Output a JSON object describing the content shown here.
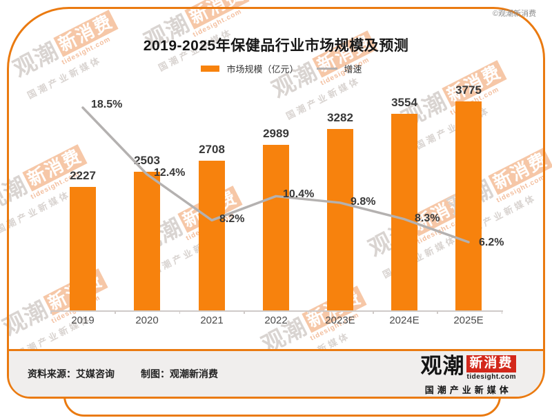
{
  "copyright": "©观潮新消费",
  "title": "2019-2025年保健品行业市场规模及预测",
  "legend": {
    "bar_label": "市场规模（亿元）",
    "line_label": "增速"
  },
  "chart_data": {
    "type": "bar+line",
    "title": "2019-2025年保健品行业市场规模及预测",
    "categories": [
      "2019",
      "2020",
      "2021",
      "2022",
      "2023E",
      "2024E",
      "2025E"
    ],
    "series": [
      {
        "name": "市场规模（亿元）",
        "type": "bar",
        "values": [
          2227,
          2503,
          2708,
          2989,
          3282,
          3554,
          3775
        ]
      },
      {
        "name": "增速",
        "type": "line",
        "unit": "%",
        "values": [
          18.5,
          12.4,
          8.2,
          10.4,
          9.8,
          8.3,
          6.2
        ]
      }
    ],
    "value_labels": [
      "2227",
      "2503",
      "2708",
      "2989",
      "3282",
      "3554",
      "3775"
    ],
    "line_labels": [
      "18.5%",
      "12.4%",
      "8.2%",
      "10.4%",
      "9.8%",
      "8.3%",
      "6.2%"
    ],
    "bar_axis_range": [
      0,
      3900
    ],
    "line_axis_range": [
      0,
      20
    ],
    "grid": false,
    "legend_position": "top",
    "bar_color": "#f7820d",
    "line_color": "#b4b1b0"
  },
  "footer": {
    "source_label": "资料来源：艾媒咨询",
    "credit_label": "制图：观潮新消费"
  },
  "logo": {
    "part1": "观潮",
    "part2": "新消费",
    "domain": "tidesight.com",
    "tagline": "国潮产业新媒体"
  },
  "watermark": {
    "line1a": "观潮",
    "line1b": "新消费",
    "line2": "tidesight.com",
    "line3": "国潮产业新媒体"
  },
  "colors": {
    "accent": "#ea7a10",
    "bar": "#f7820d",
    "line": "#b4b1b0",
    "logo_red": "#d3281b",
    "footer_bg": "#f0eeed"
  }
}
